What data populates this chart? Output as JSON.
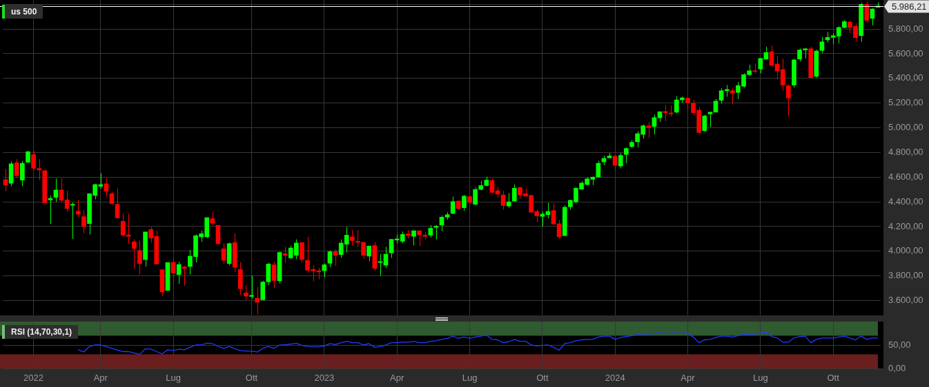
{
  "chart_data": [
    {
      "type": "candlestick",
      "title": "us 500",
      "categories": [
        null,
        null,
        null,
        null,
        null,
        null,
        null,
        null,
        null,
        null,
        null,
        null,
        null,
        null,
        null,
        null,
        null,
        null,
        null,
        null,
        null,
        null,
        null,
        null,
        null,
        null,
        null,
        null,
        null,
        null,
        null,
        null,
        null,
        null,
        null,
        null,
        null,
        null,
        null,
        null,
        null,
        null,
        null,
        null,
        null,
        null,
        null,
        null,
        null,
        null,
        null,
        null,
        null,
        null,
        null,
        null,
        null,
        null,
        null,
        null,
        null,
        null,
        null,
        null,
        null,
        null,
        null,
        null,
        null,
        null,
        null,
        null,
        null,
        null,
        null,
        null,
        null,
        null,
        null,
        null,
        null,
        null,
        null,
        null,
        null,
        null,
        null,
        null,
        null,
        null,
        null,
        null,
        null,
        null,
        null,
        null,
        null,
        null,
        null,
        null,
        null,
        null,
        null,
        null,
        null,
        null,
        null,
        null,
        null,
        null,
        null,
        null,
        null,
        null,
        null,
        null,
        null,
        null,
        null,
        null,
        null,
        null,
        null,
        null,
        null,
        null,
        null,
        null,
        null,
        null,
        null,
        null,
        null,
        null,
        null,
        null,
        null,
        null,
        null,
        null,
        null,
        null,
        null,
        null,
        null,
        null,
        null,
        null,
        null,
        null,
        null,
        null,
        null,
        null,
        null,
        null,
        null
      ],
      "ohlc": [
        [
          4580,
          4666,
          4486,
          4536
        ],
        [
          4550,
          4726,
          4526,
          4708
        ],
        [
          4716,
          4746,
          4596,
          4612
        ],
        [
          4576,
          4732,
          4526,
          4712
        ],
        [
          4720,
          4812,
          4716,
          4806
        ],
        [
          4782,
          4812,
          4660,
          4672
        ],
        [
          4670,
          4746,
          4576,
          4658
        ],
        [
          4652,
          4666,
          4392,
          4392
        ],
        [
          4416,
          4452,
          4220,
          4428
        ],
        [
          4436,
          4590,
          4400,
          4496
        ],
        [
          4496,
          4590,
          4400,
          4412
        ],
        [
          4416,
          4490,
          4320,
          4346
        ],
        [
          4372,
          4396,
          4100,
          4380
        ],
        [
          4324,
          4416,
          4276,
          4300
        ],
        [
          4280,
          4332,
          4144,
          4200
        ],
        [
          4224,
          4466,
          4136,
          4466
        ],
        [
          4452,
          4546,
          4420,
          4540
        ],
        [
          4526,
          4630,
          4506,
          4540
        ],
        [
          4546,
          4590,
          4442,
          4486
        ],
        [
          4466,
          4482,
          4376,
          4386
        ],
        [
          4380,
          4510,
          4264,
          4270
        ],
        [
          4242,
          4304,
          4122,
          4130
        ],
        [
          4132,
          4304,
          4060,
          4120
        ],
        [
          4076,
          4096,
          3860,
          4022
        ],
        [
          4006,
          4086,
          3810,
          3900
        ],
        [
          3932,
          4156,
          3876,
          4156
        ],
        [
          4176,
          4196,
          4070,
          4106
        ],
        [
          4120,
          4166,
          3896,
          3896
        ],
        [
          3850,
          3850,
          3636,
          3670
        ],
        [
          3682,
          3908,
          3682,
          3908
        ],
        [
          3910,
          3940,
          3736,
          3822
        ],
        [
          3810,
          3916,
          3736,
          3892
        ],
        [
          3872,
          3880,
          3720,
          3860
        ],
        [
          3876,
          4010,
          3812,
          3960
        ],
        [
          3956,
          4136,
          3910,
          4126
        ],
        [
          4116,
          4166,
          4076,
          4142
        ],
        [
          4116,
          4272,
          4106,
          4272
        ],
        [
          4264,
          4320,
          4212,
          4226
        ],
        [
          4210,
          4210,
          4056,
          4060
        ],
        [
          4020,
          4066,
          3900,
          3926
        ],
        [
          3900,
          4070,
          3886,
          4062
        ],
        [
          4070,
          4144,
          3832,
          3870
        ],
        [
          3852,
          3912,
          3646,
          3696
        ],
        [
          3662,
          3724,
          3606,
          3636
        ],
        [
          3634,
          3802,
          3616,
          3642
        ],
        [
          3620,
          3712,
          3486,
          3586
        ],
        [
          3606,
          3760,
          3606,
          3750
        ],
        [
          3752,
          3906,
          3726,
          3896
        ],
        [
          3890,
          3912,
          3700,
          3762
        ],
        [
          3760,
          3996,
          3740,
          3990
        ],
        [
          3980,
          4036,
          3906,
          3966
        ],
        [
          3946,
          4046,
          3936,
          4026
        ],
        [
          3966,
          4096,
          3936,
          4066
        ],
        [
          4070,
          4070,
          3910,
          3932
        ],
        [
          3926,
          4116,
          3826,
          3846
        ],
        [
          3852,
          3886,
          3756,
          3840
        ],
        [
          3842,
          3866,
          3772,
          3832
        ],
        [
          3842,
          3900,
          3790,
          3890
        ],
        [
          3902,
          4006,
          3870,
          3996
        ],
        [
          3996,
          4016,
          3880,
          3966
        ],
        [
          3972,
          4096,
          3946,
          4066
        ],
        [
          4056,
          4196,
          3992,
          4130
        ],
        [
          4116,
          4172,
          4046,
          4086
        ],
        [
          4080,
          4172,
          4036,
          4072
        ],
        [
          4072,
          4072,
          3936,
          3966
        ],
        [
          3960,
          4042,
          3920,
          4042
        ],
        [
          4046,
          4076,
          3842,
          3860
        ],
        [
          3908,
          3976,
          3802,
          3916
        ],
        [
          3886,
          4036,
          3866,
          3976
        ],
        [
          3986,
          4096,
          3946,
          4096
        ],
        [
          4090,
          4136,
          4062,
          4100
        ],
        [
          4080,
          4160,
          4066,
          4136
        ],
        [
          4140,
          4172,
          4106,
          4126
        ],
        [
          4120,
          4166,
          4046,
          4166
        ],
        [
          4166,
          4166,
          4042,
          4132
        ],
        [
          4130,
          4156,
          4096,
          4120
        ],
        [
          4130,
          4210,
          4110,
          4186
        ],
        [
          4192,
          4212,
          4096,
          4202
        ],
        [
          4212,
          4290,
          4162,
          4276
        ],
        [
          4276,
          4316,
          4256,
          4296
        ],
        [
          4306,
          4442,
          4300,
          4402
        ],
        [
          4406,
          4412,
          4340,
          4346
        ],
        [
          4352,
          4456,
          4326,
          4446
        ],
        [
          4442,
          4450,
          4386,
          4396
        ],
        [
          4380,
          4516,
          4372,
          4500
        ],
        [
          4500,
          4570,
          4496,
          4532
        ],
        [
          4532,
          4604,
          4526,
          4576
        ],
        [
          4572,
          4590,
          4470,
          4476
        ],
        [
          4490,
          4522,
          4436,
          4462
        ],
        [
          4456,
          4490,
          4336,
          4370
        ],
        [
          4366,
          4470,
          4352,
          4400
        ],
        [
          4406,
          4540,
          4400,
          4510
        ],
        [
          4516,
          4522,
          4426,
          4456
        ],
        [
          4466,
          4510,
          4442,
          4446
        ],
        [
          4452,
          4456,
          4312,
          4316
        ],
        [
          4322,
          4336,
          4236,
          4286
        ],
        [
          4282,
          4320,
          4200,
          4300
        ],
        [
          4296,
          4392,
          4266,
          4322
        ],
        [
          4330,
          4386,
          4220,
          4220
        ],
        [
          4222,
          4252,
          4100,
          4116
        ],
        [
          4126,
          4372,
          4126,
          4356
        ],
        [
          4360,
          4416,
          4336,
          4412
        ],
        [
          4400,
          4520,
          4386,
          4510
        ],
        [
          4502,
          4566,
          4500,
          4552
        ],
        [
          4540,
          4600,
          4532,
          4586
        ],
        [
          4582,
          4606,
          4536,
          4600
        ],
        [
          4600,
          4732,
          4596,
          4712
        ],
        [
          4724,
          4772,
          4696,
          4752
        ],
        [
          4756,
          4796,
          4752,
          4772
        ],
        [
          4770,
          4776,
          4660,
          4696
        ],
        [
          4690,
          4796,
          4672,
          4776
        ],
        [
          4784,
          4840,
          4712,
          4832
        ],
        [
          4848,
          4900,
          4836,
          4882
        ],
        [
          4886,
          4972,
          4840,
          4952
        ],
        [
          4946,
          5026,
          4912,
          5016
        ],
        [
          5016,
          5046,
          4920,
          5002
        ],
        [
          5010,
          5106,
          4946,
          5082
        ],
        [
          5080,
          5132,
          5046,
          5130
        ],
        [
          5132,
          5182,
          5052,
          5122
        ],
        [
          5120,
          5182,
          5092,
          5112
        ],
        [
          5126,
          5256,
          5116,
          5226
        ],
        [
          5226,
          5252,
          5202,
          5242
        ],
        [
          5240,
          5250,
          5142,
          5202
        ],
        [
          5196,
          5226,
          5102,
          5122
        ],
        [
          5142,
          5166,
          4952,
          4962
        ],
        [
          4976,
          5106,
          4966,
          5096
        ],
        [
          5112,
          5132,
          5006,
          5126
        ],
        [
          5126,
          5232,
          5126,
          5216
        ],
        [
          5222,
          5320,
          5196,
          5300
        ],
        [
          5300,
          5346,
          5252,
          5310
        ],
        [
          5300,
          5320,
          5192,
          5280
        ],
        [
          5286,
          5370,
          5232,
          5342
        ],
        [
          5336,
          5442,
          5326,
          5430
        ],
        [
          5430,
          5512,
          5420,
          5462
        ],
        [
          5462,
          5520,
          5442,
          5456
        ],
        [
          5476,
          5562,
          5442,
          5562
        ],
        [
          5556,
          5656,
          5552,
          5610
        ],
        [
          5616,
          5666,
          5492,
          5506
        ],
        [
          5516,
          5580,
          5392,
          5460
        ],
        [
          5472,
          5560,
          5300,
          5346
        ],
        [
          5340,
          5352,
          5092,
          5242
        ],
        [
          5346,
          5560,
          5326,
          5550
        ],
        [
          5556,
          5642,
          5536,
          5630
        ],
        [
          5630,
          5646,
          5562,
          5640
        ],
        [
          5640,
          5656,
          5400,
          5406
        ],
        [
          5416,
          5632,
          5406,
          5622
        ],
        [
          5626,
          5736,
          5606,
          5696
        ],
        [
          5712,
          5776,
          5692,
          5732
        ],
        [
          5732,
          5766,
          5676,
          5746
        ],
        [
          5742,
          5822,
          5686,
          5812
        ],
        [
          5812,
          5872,
          5806,
          5860
        ],
        [
          5856,
          5866,
          5766,
          5812
        ],
        [
          5822,
          5846,
          5700,
          5730
        ],
        [
          5746,
          6012,
          5696,
          6000
        ],
        [
          6000,
          6020,
          5852,
          5870
        ],
        [
          5886,
          5970,
          5830,
          5962
        ],
        [
          5976,
          6016,
          5976,
          5986.21
        ]
      ],
      "colors": [
        "#ff0000",
        "#00ff00",
        "#ff0000",
        "#00ff00",
        "#00ff00",
        "#ff0000",
        "#ff0000",
        "#ff0000",
        "#00ff00",
        "#00ff00",
        "#ff0000",
        "#ff0000",
        "#00ff00",
        "#ff0000",
        "#ff0000",
        "#00ff00",
        "#00ff00",
        "#00ff00",
        "#ff0000",
        "#ff0000",
        "#ff0000",
        "#ff0000",
        "#ff0000",
        "#ff0000",
        "#ff0000",
        "#00ff00",
        "#ff0000",
        "#ff0000",
        "#ff0000",
        "#00ff00",
        "#ff0000",
        "#00ff00",
        "#ff0000",
        "#00ff00",
        "#00ff00",
        "#00ff00",
        "#00ff00",
        "#ff0000",
        "#ff0000",
        "#ff0000",
        "#00ff00",
        "#ff0000",
        "#ff0000",
        "#ff0000",
        "#00ff00",
        "#ff0000",
        "#00ff00",
        "#00ff00",
        "#ff0000",
        "#00ff00",
        "#ff0000",
        "#00ff00",
        "#00ff00",
        "#ff0000",
        "#ff0000",
        "#ff0000",
        "#ff0000",
        "#00ff00",
        "#00ff00",
        "#ff0000",
        "#00ff00",
        "#00ff00",
        "#ff0000",
        "#ff0000",
        "#ff0000",
        "#00ff00",
        "#ff0000",
        "#00ff00",
        "#00ff00",
        "#00ff00",
        "#00ff00",
        "#00ff00",
        "#ff0000",
        "#00ff00",
        "#ff0000",
        "#ff0000",
        "#00ff00",
        "#00ff00",
        "#00ff00",
        "#00ff00",
        "#00ff00",
        "#ff0000",
        "#00ff00",
        "#ff0000",
        "#00ff00",
        "#00ff00",
        "#00ff00",
        "#ff0000",
        "#ff0000",
        "#ff0000",
        "#00ff00",
        "#00ff00",
        "#ff0000",
        "#ff0000",
        "#ff0000",
        "#ff0000",
        "#00ff00",
        "#00ff00",
        "#ff0000",
        "#ff0000",
        "#00ff00",
        "#00ff00",
        "#00ff00",
        "#00ff00",
        "#00ff00",
        "#00ff00",
        "#00ff00",
        "#00ff00",
        "#00ff00",
        "#ff0000",
        "#00ff00",
        "#00ff00",
        "#00ff00",
        "#00ff00",
        "#00ff00",
        "#ff0000",
        "#00ff00",
        "#00ff00",
        "#ff0000",
        "#ff0000",
        "#00ff00",
        "#00ff00",
        "#ff0000",
        "#ff0000",
        "#ff0000",
        "#00ff00",
        "#00ff00",
        "#00ff00",
        "#00ff00",
        "#00ff00",
        "#ff0000",
        "#00ff00",
        "#00ff00",
        "#00ff00",
        "#ff0000",
        "#00ff00",
        "#00ff00",
        "#ff0000",
        "#ff0000",
        "#ff0000",
        "#ff0000",
        "#00ff00",
        "#00ff00",
        "#00ff00",
        "#ff0000",
        "#00ff00",
        "#00ff00",
        "#00ff00",
        "#00ff00",
        "#00ff00",
        "#00ff00",
        "#ff0000",
        "#ff0000",
        "#00ff00",
        "#ff0000",
        "#00ff00",
        "#00ff00"
      ],
      "ylim": [
        3480,
        6035
      ],
      "yticks": [
        {
          "value": 3600,
          "label": "3.600,00"
        },
        {
          "value": 3800,
          "label": "3.800,00"
        },
        {
          "value": 4000,
          "label": "4.000,00"
        },
        {
          "value": 4200,
          "label": "4.200,00"
        },
        {
          "value": 4400,
          "label": "4.400,00"
        },
        {
          "value": 4600,
          "label": "4.600,00"
        },
        {
          "value": 4800,
          "label": "4.800,00"
        },
        {
          "value": 5000,
          "label": "5.000,00"
        },
        {
          "value": 5200,
          "label": "5.200,00"
        },
        {
          "value": 5400,
          "label": "5.400,00"
        },
        {
          "value": 5600,
          "label": "5.600,00"
        },
        {
          "value": 5800,
          "label": "5.800,00"
        },
        {
          "value": 6000,
          "label": null
        }
      ],
      "grid": true,
      "tick_labels": "y",
      "ref_lines": [
        {
          "axis": "y",
          "value": 5986.21,
          "label": "5.986,21",
          "color": "#ffffff"
        }
      ]
    },
    {
      "type": "line",
      "title": "RSI (14,70,30,1)",
      "categories": [
        null,
        null,
        null,
        null,
        null,
        "2022",
        null,
        null,
        null,
        null,
        null,
        null,
        null,
        null,
        null,
        null,
        null,
        "Apr",
        null,
        null,
        null,
        null,
        null,
        null,
        null,
        null,
        null,
        null,
        null,
        null,
        "Lug",
        null,
        null,
        null,
        null,
        null,
        null,
        null,
        null,
        null,
        null,
        null,
        null,
        null,
        "Ott",
        null,
        null,
        null,
        null,
        null,
        null,
        null,
        null,
        null,
        null,
        null,
        null,
        "2023",
        null,
        null,
        null,
        null,
        null,
        null,
        null,
        null,
        null,
        null,
        null,
        null,
        "Apr",
        null,
        null,
        null,
        null,
        null,
        null,
        null,
        null,
        null,
        null,
        null,
        null,
        "Lug",
        null,
        null,
        null,
        null,
        null,
        null,
        null,
        null,
        null,
        null,
        null,
        null,
        "Ott",
        null,
        null,
        null,
        null,
        null,
        null,
        null,
        null,
        null,
        null,
        null,
        null,
        "2024",
        null,
        null,
        null,
        null,
        null,
        null,
        null,
        null,
        null,
        null,
        null,
        null,
        "Apr",
        null,
        null,
        null,
        null,
        null,
        null,
        null,
        null,
        null,
        null,
        null,
        null,
        "Lug",
        null,
        null,
        null,
        null,
        null,
        null,
        null,
        null,
        null,
        null,
        null,
        null,
        "Ott",
        null,
        null,
        null,
        null,
        null,
        null,
        null,
        null
      ],
      "series": [
        {
          "color": "#1f3cff",
          "values": [
            null,
            null,
            null,
            null,
            null,
            null,
            null,
            null,
            null,
            null,
            null,
            null,
            null,
            40,
            35,
            47,
            50,
            50,
            47,
            43,
            39,
            36,
            36,
            33,
            30,
            42,
            41,
            36,
            31,
            40,
            38,
            41,
            40,
            45,
            50,
            50,
            54,
            53,
            47,
            43,
            47,
            42,
            38,
            37,
            37,
            35,
            43,
            47,
            43,
            50,
            50,
            52,
            54,
            49,
            47,
            46,
            46,
            48,
            53,
            51,
            55,
            58,
            55,
            55,
            50,
            53,
            45,
            47,
            50,
            55,
            55,
            56,
            56,
            58,
            55,
            55,
            58,
            59,
            62,
            64,
            69,
            64,
            67,
            64,
            67,
            69,
            71,
            62,
            61,
            55,
            57,
            62,
            58,
            58,
            50,
            48,
            49,
            50,
            45,
            39,
            53,
            55,
            59,
            61,
            62,
            62,
            67,
            69,
            69,
            62,
            66,
            68,
            70,
            72,
            74,
            73,
            75,
            76,
            75,
            74,
            78,
            79,
            74,
            67,
            55,
            61,
            62,
            66,
            69,
            69,
            67,
            70,
            73,
            73,
            73,
            76,
            78,
            68,
            65,
            56,
            56,
            65,
            68,
            69,
            55,
            62,
            65,
            65,
            65,
            67,
            69,
            65,
            61,
            69,
            62,
            65,
            65
          ]
        }
      ],
      "ylim": [
        0,
        100
      ],
      "yticks": [
        {
          "value": 0,
          "label": "0,00"
        },
        {
          "value": 50,
          "label": "50,00"
        }
      ],
      "grid": true,
      "marker": "none",
      "bands": [
        {
          "axis": "y",
          "from": 70,
          "to": 100,
          "color": "#305a30"
        },
        {
          "axis": "y",
          "from": 0,
          "to": 30,
          "color": "#6a1e1e"
        }
      ]
    }
  ]
}
